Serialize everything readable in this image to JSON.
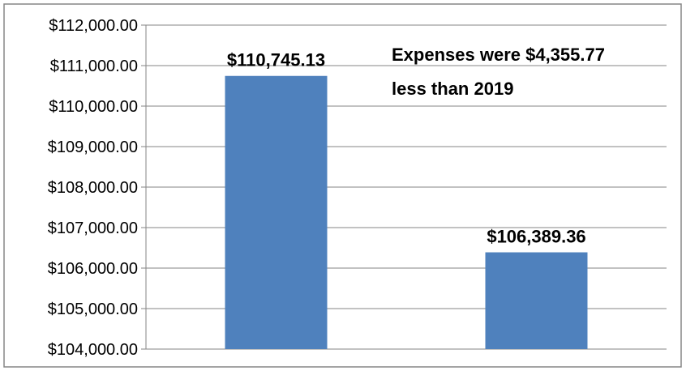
{
  "chart_data": {
    "type": "bar",
    "categories": [
      "",
      ""
    ],
    "values": [
      110745.13,
      106389.36
    ],
    "data_labels": [
      "$110,745.13",
      "$106,389.36"
    ],
    "ylim": [
      104000,
      112000
    ],
    "y_ticks": [
      104000,
      105000,
      106000,
      107000,
      108000,
      109000,
      110000,
      111000,
      112000
    ],
    "y_tick_labels": [
      "$104,000.00",
      "$105,000.00",
      "$106,000.00",
      "$107,000.00",
      "$108,000.00",
      "$109,000.00",
      "$110,000.00",
      "$111,000.00",
      "$112,000.00"
    ],
    "annotation": {
      "line1": "Expenses were $4,355.77",
      "line2": "less than 2019"
    },
    "grid": true,
    "legend": "none",
    "colors": {
      "bar": "#4f81bd",
      "grid": "#868686",
      "axis": "#868686",
      "border": "#868686",
      "text": "#000000"
    }
  }
}
